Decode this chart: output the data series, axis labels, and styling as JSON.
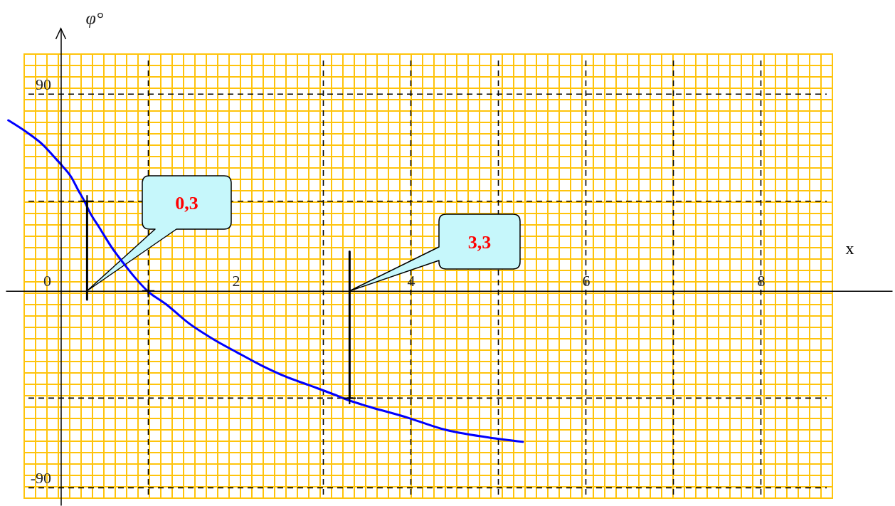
{
  "chart_data": {
    "type": "line",
    "xlabel": "x",
    "ylabel": "φ°",
    "xlim": [
      -0.63,
      9.5
    ],
    "ylim": [
      -98,
      120
    ],
    "xticks": [
      2,
      4,
      6,
      8
    ],
    "yticks": [
      -90,
      0,
      90
    ],
    "series": [
      {
        "color": "#0000ff",
        "x": [
          -0.6,
          -0.37,
          -0.21,
          -0.07,
          0.02,
          0.12,
          0.2,
          0.27,
          0.33,
          0.44,
          0.58,
          0.71,
          0.85,
          0.99,
          1.2,
          1.47,
          1.74,
          2.01,
          2.29,
          2.56,
          2.83,
          3.1,
          3.29,
          3.53,
          3.97,
          4.35,
          4.89,
          5.28
        ],
        "values": [
          78,
          72,
          67,
          61,
          57,
          52,
          46,
          41,
          36,
          29,
          20,
          13,
          6,
          0,
          -6,
          -15,
          -22,
          -28,
          -34,
          -39,
          -43,
          -47,
          -50,
          -53,
          -58,
          -63,
          -67,
          -69
        ]
      },
      {
        "type": "line",
        "color": "#000000",
        "x": [
          0.3,
          0.3
        ],
        "values": [
          -4,
          41
        ]
      },
      {
        "type": "line",
        "color": "#000000",
        "x": [
          3.3,
          3.3
        ],
        "values": [
          18,
          -49
        ]
      },
      {
        "type": "scatter",
        "color": "#000000",
        "marker": "cross",
        "x": [
          0.3,
          1,
          3.3
        ],
        "values": [
          41,
          0,
          -49
        ]
      }
    ],
    "ref_lines": [
      {
        "axis": "x",
        "value": 1,
        "color": "#000000",
        "line_style": "dashed"
      },
      {
        "axis": "x",
        "value": 3,
        "color": "#000000",
        "line_style": "dashed"
      },
      {
        "axis": "x",
        "value": 4,
        "color": "#000000",
        "line_style": "dashed"
      },
      {
        "axis": "x",
        "value": 5,
        "color": "#000000",
        "line_style": "dashed"
      },
      {
        "axis": "x",
        "value": 6,
        "color": "#000000",
        "line_style": "dashed"
      },
      {
        "axis": "x",
        "value": 7,
        "color": "#000000",
        "line_style": "dashed"
      },
      {
        "axis": "x",
        "value": 8,
        "color": "#000000",
        "line_style": "dashed"
      },
      {
        "axis": "y",
        "value": 90,
        "color": "#000000",
        "line_style": "dashed"
      },
      {
        "axis": "y",
        "value": 41,
        "color": "#000000",
        "line_style": "dashed"
      },
      {
        "axis": "y",
        "value": -49,
        "color": "#000000",
        "line_style": "dashed"
      },
      {
        "axis": "y",
        "value": -90,
        "color": "#000000",
        "line_style": "dashed"
      }
    ],
    "annotations": [
      "0,3",
      "3,3"
    ]
  }
}
